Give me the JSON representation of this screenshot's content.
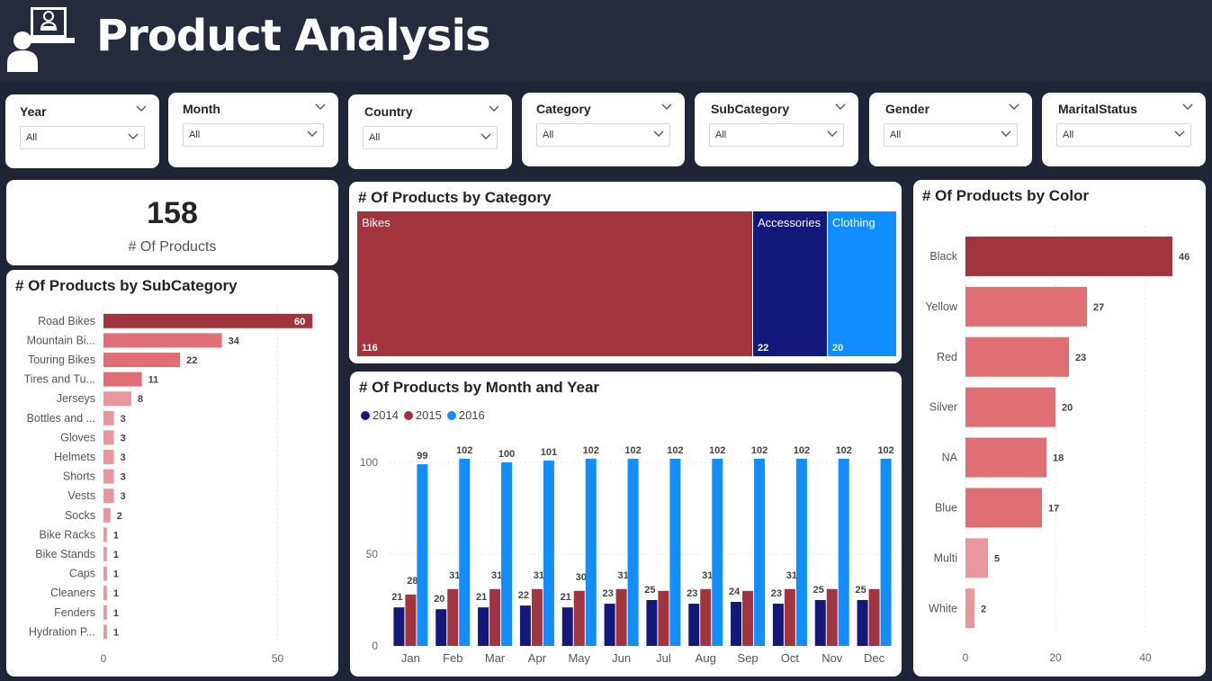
{
  "header": {
    "title": "Product Analysis",
    "logo_icon": "presenter-at-desk-icon"
  },
  "colors": {
    "dark_red": "#a1343c",
    "pink": "#e06e75",
    "light_pink": "#e8989d",
    "navy": "#13197a",
    "blue": "#118dff",
    "header_bg": "#252a3d",
    "page_bg": "#1f2436"
  },
  "slicers": [
    {
      "title": "Year",
      "value": "All"
    },
    {
      "title": "Month",
      "value": "All"
    },
    {
      "title": "Country",
      "value": "All"
    },
    {
      "title": "Category",
      "value": "All"
    },
    {
      "title": "SubCategory",
      "value": "All"
    },
    {
      "title": "Gender",
      "value": "All"
    },
    {
      "title": "MaritalStatus",
      "value": "All"
    }
  ],
  "kpi": {
    "value": "158",
    "label": "# Of Products"
  },
  "subcategory_chart": {
    "title": "# Of Products by SubCategory",
    "chart_data": {
      "type": "bar",
      "orientation": "horizontal",
      "categories": [
        "Road Bikes",
        "Mountain Bi...",
        "Touring Bikes",
        "Tires and Tu...",
        "Jerseys",
        "Bottles and ...",
        "Gloves",
        "Helmets",
        "Shorts",
        "Vests",
        "Socks",
        "Bike Racks",
        "Bike Stands",
        "Caps",
        "Cleaners",
        "Fenders",
        "Hydration P..."
      ],
      "values": [
        60,
        34,
        22,
        11,
        8,
        3,
        3,
        3,
        3,
        3,
        2,
        1,
        1,
        1,
        1,
        1,
        1
      ],
      "xticks": [
        0,
        50
      ],
      "xlim": [
        0,
        62
      ],
      "grid": true
    }
  },
  "category_chart": {
    "title": "# Of Products by Category",
    "chart_data": {
      "type": "treemap",
      "categories": [
        "Bikes",
        "Accessories",
        "Clothing"
      ],
      "values": [
        116,
        22,
        20
      ]
    }
  },
  "month_chart": {
    "title": "# Of Products by Month and Year",
    "chart_data": {
      "type": "bar",
      "categories": [
        "Jan",
        "Feb",
        "Mar",
        "Apr",
        "May",
        "Jun",
        "Jul",
        "Aug",
        "Sep",
        "Oct",
        "Nov",
        "Dec"
      ],
      "series": [
        {
          "name": "2014",
          "values": [
            21,
            20,
            21,
            22,
            21,
            23,
            25,
            23,
            24,
            23,
            25,
            25
          ]
        },
        {
          "name": "2015",
          "values": [
            28,
            31,
            31,
            31,
            30,
            31,
            30,
            31,
            30,
            31,
            31,
            31
          ]
        },
        {
          "name": "2016",
          "values": [
            99,
            102,
            100,
            101,
            102,
            102,
            102,
            102,
            102,
            102,
            102,
            102
          ]
        }
      ],
      "data_labels": {
        "2014": [
          "21",
          "20",
          "21",
          "22",
          "21",
          "23",
          "25",
          "23",
          "24",
          "23",
          "25",
          "25"
        ],
        "2015": [
          "28",
          "31",
          "31",
          "31",
          "30",
          "31",
          "",
          "31",
          "",
          "31",
          "",
          ""
        ],
        "2016": [
          "99",
          "102",
          "100",
          "101",
          "102",
          "102",
          "102",
          "102",
          "102",
          "102",
          "102",
          "102"
        ]
      },
      "yticks": [
        0,
        50,
        100
      ],
      "ylim": [
        0,
        102
      ],
      "legend": "top-left",
      "grid": true
    }
  },
  "color_chart": {
    "title": "# Of Products by Color",
    "chart_data": {
      "type": "bar",
      "orientation": "horizontal",
      "categories": [
        "Black",
        "Yellow",
        "Red",
        "Silver",
        "NA",
        "Blue",
        "Multi",
        "White"
      ],
      "values": [
        46,
        27,
        23,
        20,
        18,
        17,
        5,
        2
      ],
      "xticks": [
        0,
        20,
        40
      ],
      "xlim": [
        0,
        48
      ],
      "grid": true
    }
  }
}
